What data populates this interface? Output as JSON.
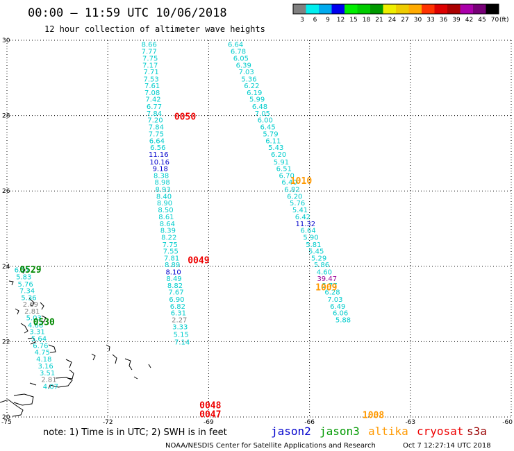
{
  "header": {
    "title": "00:00 – 11:59 UTC 10/06/2018",
    "subtitle": "12 hour collection of altimeter wave heights"
  },
  "legend": {
    "unit": "(ft)",
    "bins": [
      {
        "label": "3",
        "color": "#808080"
      },
      {
        "label": "6",
        "color": "#00eeee"
      },
      {
        "label": "9",
        "color": "#00aaee"
      },
      {
        "label": "12",
        "color": "#0000ee"
      },
      {
        "label": "15",
        "color": "#00ee00"
      },
      {
        "label": "18",
        "color": "#00cc00"
      },
      {
        "label": "21",
        "color": "#009900"
      },
      {
        "label": "24",
        "color": "#eeee00"
      },
      {
        "label": "27",
        "color": "#eecc00"
      },
      {
        "label": "30",
        "color": "#ffaa00"
      },
      {
        "label": "33",
        "color": "#ff3300"
      },
      {
        "label": "36",
        "color": "#dd0000"
      },
      {
        "label": "39",
        "color": "#aa0000"
      },
      {
        "label": "42",
        "color": "#aa00aa"
      },
      {
        "label": "45",
        "color": "#770077"
      },
      {
        "label": "70",
        "color": "#000000"
      }
    ]
  },
  "map": {
    "lon_min": -75,
    "lon_max": -60,
    "lat_min": 20,
    "lat_max": 30,
    "x_ticks": [
      {
        "lon": -75,
        "label": "-75"
      },
      {
        "lon": -72,
        "label": "-72"
      },
      {
        "lon": -69,
        "label": "-69"
      },
      {
        "lon": -66,
        "label": "-66"
      },
      {
        "lon": -63,
        "label": "-63"
      },
      {
        "lon": -60,
        "label": "-60"
      }
    ],
    "y_ticks": [
      {
        "lat": 30,
        "label": "30"
      },
      {
        "lat": 28,
        "label": "28"
      },
      {
        "lat": 26,
        "label": "26"
      },
      {
        "lat": 24,
        "label": "24"
      },
      {
        "lat": 22,
        "label": "22"
      },
      {
        "lat": 20,
        "label": "20"
      }
    ],
    "colors": {
      "cyan": "#00cccc",
      "blue": "#0000cc",
      "gray": "#808080",
      "purple": "#990099",
      "red": "#ee0000",
      "green": "#008800",
      "orange": "#ff9900"
    },
    "tracks": [
      {
        "name": "track-a",
        "color": "cyan",
        "points": [
          {
            "lon": -70.77,
            "lat": 29.9,
            "v": "8.66"
          },
          {
            "lon": -70.77,
            "lat": 29.71,
            "v": "7.77"
          },
          {
            "lon": -70.74,
            "lat": 29.53,
            "v": "7.75"
          },
          {
            "lon": -70.74,
            "lat": 29.35,
            "v": "7.17"
          },
          {
            "lon": -70.71,
            "lat": 29.17,
            "v": "7.71"
          },
          {
            "lon": -70.71,
            "lat": 28.98,
            "v": "7.53"
          },
          {
            "lon": -70.68,
            "lat": 28.8,
            "v": "7.61"
          },
          {
            "lon": -70.68,
            "lat": 28.62,
            "v": "7.08"
          },
          {
            "lon": -70.65,
            "lat": 28.44,
            "v": "7.42"
          },
          {
            "lon": -70.62,
            "lat": 28.25,
            "v": "6.77"
          },
          {
            "lon": -70.62,
            "lat": 28.07,
            "v": "7.84"
          },
          {
            "lon": -70.59,
            "lat": 27.89,
            "v": "7.20"
          },
          {
            "lon": -70.56,
            "lat": 27.71,
            "v": "7.84"
          },
          {
            "lon": -70.56,
            "lat": 27.52,
            "v": "7.75"
          },
          {
            "lon": -70.54,
            "lat": 27.34,
            "v": "6.64"
          },
          {
            "lon": -70.51,
            "lat": 27.16,
            "v": "6.56"
          },
          {
            "lon": -70.49,
            "lat": 26.98,
            "v": "11.16",
            "c": "blue"
          },
          {
            "lon": -70.46,
            "lat": 26.78,
            "v": "10.16",
            "c": "blue"
          },
          {
            "lon": -70.44,
            "lat": 26.6,
            "v": "9.18",
            "c": "blue"
          },
          {
            "lon": -70.41,
            "lat": 26.42,
            "v": "8.38"
          },
          {
            "lon": -70.38,
            "lat": 26.24,
            "v": "8.98"
          },
          {
            "lon": -70.36,
            "lat": 26.05,
            "v": "8.93"
          },
          {
            "lon": -70.33,
            "lat": 25.87,
            "v": "8.40"
          },
          {
            "lon": -70.31,
            "lat": 25.69,
            "v": "8.90"
          },
          {
            "lon": -70.28,
            "lat": 25.51,
            "v": "8.50"
          },
          {
            "lon": -70.26,
            "lat": 25.32,
            "v": "8.61"
          },
          {
            "lon": -70.23,
            "lat": 25.14,
            "v": "8.64"
          },
          {
            "lon": -70.21,
            "lat": 24.96,
            "v": "8.39"
          },
          {
            "lon": -70.18,
            "lat": 24.78,
            "v": "8.22"
          },
          {
            "lon": -70.15,
            "lat": 24.59,
            "v": "7.75"
          },
          {
            "lon": -70.13,
            "lat": 24.41,
            "v": "7.55"
          },
          {
            "lon": -70.1,
            "lat": 24.23,
            "v": "7.81"
          },
          {
            "lon": -70.08,
            "lat": 24.05,
            "v": "8.89"
          },
          {
            "lon": -70.05,
            "lat": 23.86,
            "v": "8.10",
            "c": "blue"
          },
          {
            "lon": -70.03,
            "lat": 23.68,
            "v": "8.49"
          },
          {
            "lon": -70.0,
            "lat": 23.5,
            "v": "8.82"
          },
          {
            "lon": -69.97,
            "lat": 23.32,
            "v": "7.67"
          },
          {
            "lon": -69.95,
            "lat": 23.13,
            "v": "6.90"
          },
          {
            "lon": -69.92,
            "lat": 22.95,
            "v": "6.82"
          },
          {
            "lon": -69.9,
            "lat": 22.77,
            "v": "6.31"
          },
          {
            "lon": -69.87,
            "lat": 22.59,
            "v": "2.27",
            "c": "gray"
          },
          {
            "lon": -69.85,
            "lat": 22.4,
            "v": "3.33"
          },
          {
            "lon": -69.82,
            "lat": 22.2,
            "v": "5.15"
          },
          {
            "lon": -69.79,
            "lat": 22.0,
            "v": "7.14"
          }
        ]
      },
      {
        "name": "track-b",
        "color": "cyan",
        "points": [
          {
            "lon": -68.2,
            "lat": 29.9,
            "v": "6.64"
          },
          {
            "lon": -68.12,
            "lat": 29.71,
            "v": "6.78"
          },
          {
            "lon": -68.04,
            "lat": 29.53,
            "v": "6.05"
          },
          {
            "lon": -67.96,
            "lat": 29.35,
            "v": "6.39"
          },
          {
            "lon": -67.88,
            "lat": 29.17,
            "v": "7.03"
          },
          {
            "lon": -67.8,
            "lat": 28.98,
            "v": "5.36"
          },
          {
            "lon": -67.72,
            "lat": 28.8,
            "v": "6.22"
          },
          {
            "lon": -67.64,
            "lat": 28.62,
            "v": "6.19"
          },
          {
            "lon": -67.56,
            "lat": 28.44,
            "v": "5.99"
          },
          {
            "lon": -67.48,
            "lat": 28.25,
            "v": "6.48"
          },
          {
            "lon": -67.4,
            "lat": 28.07,
            "v": "7.05"
          },
          {
            "lon": -67.32,
            "lat": 27.89,
            "v": "6.00"
          },
          {
            "lon": -67.24,
            "lat": 27.71,
            "v": "6.45"
          },
          {
            "lon": -67.16,
            "lat": 27.52,
            "v": "5.79"
          },
          {
            "lon": -67.08,
            "lat": 27.34,
            "v": "6.11"
          },
          {
            "lon": -67.0,
            "lat": 27.16,
            "v": "5.43"
          },
          {
            "lon": -66.92,
            "lat": 26.98,
            "v": "6.20"
          },
          {
            "lon": -66.84,
            "lat": 26.78,
            "v": "5.91"
          },
          {
            "lon": -66.76,
            "lat": 26.6,
            "v": "6.51"
          },
          {
            "lon": -66.68,
            "lat": 26.42,
            "v": "6.70"
          },
          {
            "lon": -66.6,
            "lat": 26.24,
            "v": "6.40"
          },
          {
            "lon": -66.52,
            "lat": 26.05,
            "v": "6.82"
          },
          {
            "lon": -66.44,
            "lat": 25.87,
            "v": "6.20"
          },
          {
            "lon": -66.36,
            "lat": 25.69,
            "v": "5.76"
          },
          {
            "lon": -66.28,
            "lat": 25.51,
            "v": "5.41"
          },
          {
            "lon": -66.2,
            "lat": 25.32,
            "v": "6.42"
          },
          {
            "lon": -66.12,
            "lat": 25.14,
            "v": "11.32",
            "c": "blue"
          },
          {
            "lon": -66.04,
            "lat": 24.96,
            "v": "6.64"
          },
          {
            "lon": -65.96,
            "lat": 24.78,
            "v": "5.90"
          },
          {
            "lon": -65.88,
            "lat": 24.59,
            "v": "5.81"
          },
          {
            "lon": -65.8,
            "lat": 24.41,
            "v": "5.45"
          },
          {
            "lon": -65.72,
            "lat": 24.23,
            "v": "5.29"
          },
          {
            "lon": -65.64,
            "lat": 24.05,
            "v": "5.86"
          },
          {
            "lon": -65.56,
            "lat": 23.86,
            "v": "4.60"
          },
          {
            "lon": -65.48,
            "lat": 23.68,
            "v": "39.47",
            "c": "purple"
          },
          {
            "lon": -65.4,
            "lat": 23.5,
            "v": "5.77"
          },
          {
            "lon": -65.32,
            "lat": 23.32,
            "v": "6.28"
          },
          {
            "lon": -65.24,
            "lat": 23.13,
            "v": "7.03"
          },
          {
            "lon": -65.16,
            "lat": 22.95,
            "v": "6.49"
          },
          {
            "lon": -65.08,
            "lat": 22.77,
            "v": "6.06"
          },
          {
            "lon": -65.0,
            "lat": 22.59,
            "v": "5.88"
          }
        ]
      },
      {
        "name": "track-c",
        "color": "cyan",
        "points": [
          {
            "lon": -74.55,
            "lat": 23.91,
            "v": "6.21"
          },
          {
            "lon": -74.5,
            "lat": 23.73,
            "v": "5.83"
          },
          {
            "lon": -74.45,
            "lat": 23.54,
            "v": "5.76"
          },
          {
            "lon": -74.4,
            "lat": 23.36,
            "v": "7.34"
          },
          {
            "lon": -74.35,
            "lat": 23.18,
            "v": "5.36"
          },
          {
            "lon": -74.3,
            "lat": 23.0,
            "v": "2.69",
            "c": "gray"
          },
          {
            "lon": -74.25,
            "lat": 22.82,
            "v": "2.81",
            "c": "gray"
          },
          {
            "lon": -74.2,
            "lat": 22.64,
            "v": "5.03"
          },
          {
            "lon": -74.15,
            "lat": 22.45,
            "v": "4.66"
          },
          {
            "lon": -74.1,
            "lat": 22.27,
            "v": "3.31"
          },
          {
            "lon": -74.05,
            "lat": 22.09,
            "v": "5.64"
          },
          {
            "lon": -74.0,
            "lat": 21.91,
            "v": "6.76"
          },
          {
            "lon": -73.95,
            "lat": 21.73,
            "v": "4.75"
          },
          {
            "lon": -73.9,
            "lat": 21.55,
            "v": "4.18"
          },
          {
            "lon": -73.85,
            "lat": 21.36,
            "v": "3.16"
          },
          {
            "lon": -73.8,
            "lat": 21.18,
            "v": "3.51"
          },
          {
            "lon": -73.75,
            "lat": 21.0,
            "v": "2.81",
            "c": "gray"
          },
          {
            "lon": -73.7,
            "lat": 20.82,
            "v": "4.07"
          }
        ]
      }
    ],
    "pass_times": [
      {
        "lon": -69.7,
        "lat": 27.98,
        "label": "0050",
        "color": "red"
      },
      {
        "lon": -66.25,
        "lat": 26.28,
        "label": "1010",
        "color": "orange"
      },
      {
        "lon": -69.3,
        "lat": 24.17,
        "label": "0049",
        "color": "red"
      },
      {
        "lon": -74.3,
        "lat": 23.92,
        "label": "0529",
        "color": "green"
      },
      {
        "lon": -65.5,
        "lat": 23.45,
        "label": "1009",
        "color": "orange"
      },
      {
        "lon": -73.9,
        "lat": 22.53,
        "label": "0530",
        "color": "green"
      },
      {
        "lon": -68.95,
        "lat": 20.32,
        "label": "0048",
        "color": "red"
      },
      {
        "lon": -68.95,
        "lat": 20.08,
        "label": "0047",
        "color": "red"
      },
      {
        "lon": -64.1,
        "lat": 20.06,
        "label": "1008",
        "color": "orange"
      }
    ]
  },
  "footer": {
    "note": "note: 1) Time is in UTC; 2) SWH is in feet",
    "satellites": [
      {
        "label": "jason2",
        "color": "#0000cc"
      },
      {
        "label": "jason3",
        "color": "#009900"
      },
      {
        "label": "altika",
        "color": "#ff9900"
      },
      {
        "label": "cryosat",
        "color": "#ee0000"
      },
      {
        "label": "s3a",
        "color": "#990000"
      }
    ],
    "credit": "NOAA/NESDIS Center for Satellite Applications and Research",
    "timestamp": "Oct  7 12:27:14 UTC 2018"
  }
}
